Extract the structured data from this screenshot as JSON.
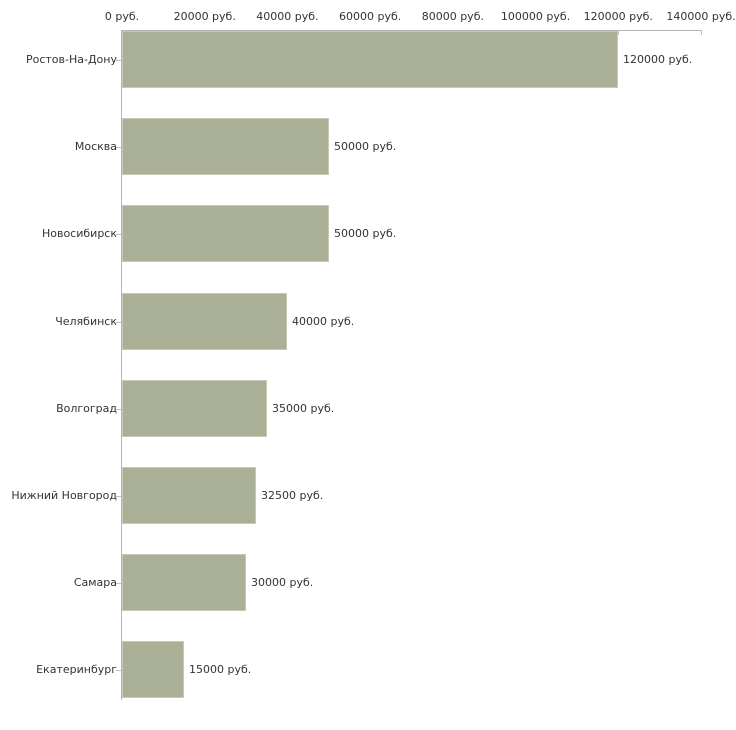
{
  "chart_data": {
    "type": "bar",
    "orientation": "horizontal",
    "title": "",
    "xlabel": "",
    "ylabel": "",
    "grid": false,
    "legend": null,
    "categories": [
      "Ростов-На-Дону",
      "Москва",
      "Новосибирск",
      "Челябинск",
      "Волгоград",
      "Нижний Новгород",
      "Самара",
      "Екатеринбург"
    ],
    "values": [
      120000,
      50000,
      50000,
      40000,
      35000,
      32500,
      30000,
      15000
    ],
    "value_labels": [
      "120000 руб.",
      "50000 руб.",
      "50000 руб.",
      "40000 руб.",
      "35000 руб.",
      "32500 руб.",
      "30000 руб.",
      "15000 руб."
    ],
    "x_tick_labels": [
      "0 руб.",
      "20000 руб.",
      "40000 руб.",
      "60000 руб.",
      "80000 руб.",
      "100000 руб.",
      "120000 руб.",
      "140000 руб."
    ],
    "xlim": [
      0,
      140000
    ],
    "x_tick_step": 20000,
    "colors": {
      "bar_fill": "#aab095",
      "bar_edge": "#c6c8b8",
      "axis_line": "#b5b5b5",
      "tick_mark": "#c2c4ab",
      "text": "#333333",
      "background": "#ffffff"
    }
  }
}
